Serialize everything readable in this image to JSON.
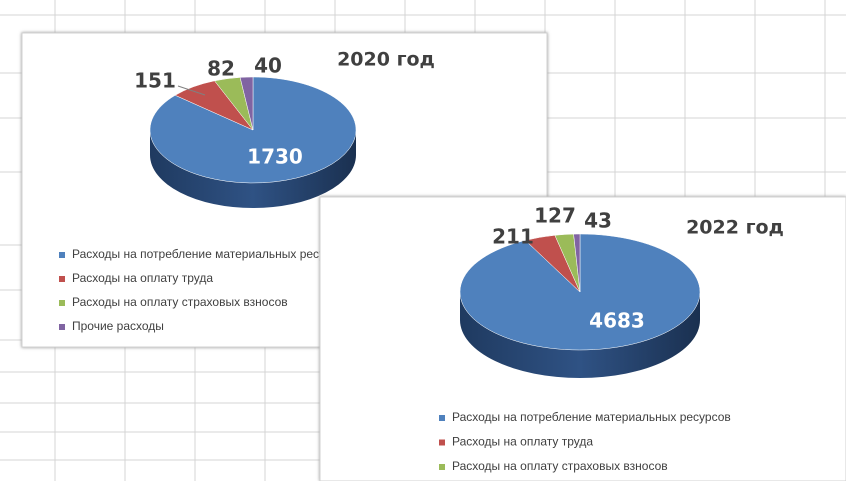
{
  "chart_data": [
    {
      "type": "pie",
      "title": "2020 год",
      "categories": [
        "Расходы на потребление материальных ресурсов",
        "Расходы на оплату труда",
        "Расходы на оплату страховых взносов",
        "Прочие расходы"
      ],
      "values": [
        1730,
        151,
        82,
        40
      ],
      "colors": [
        "#4f81bd",
        "#c0504d",
        "#9bbb59",
        "#8064a2"
      ]
    },
    {
      "type": "pie",
      "title": "2022 год",
      "categories": [
        "Расходы на потребление материальных ресурсов",
        "Расходы на оплату труда",
        "Расходы на оплату страховых взносов",
        null
      ],
      "values": [
        4683,
        211,
        127,
        43
      ],
      "colors": [
        "#4f81bd",
        "#c0504d",
        "#9bbb59",
        "#8064a2"
      ]
    }
  ]
}
